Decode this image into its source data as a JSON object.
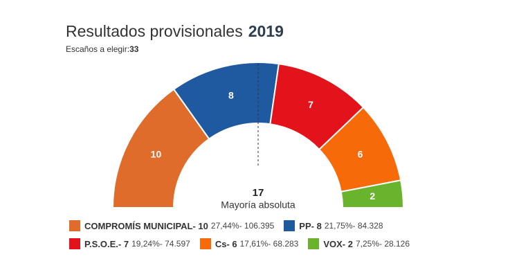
{
  "chart_data": {
    "type": "semicircle",
    "title": "Resultados provisionales",
    "year": 2019,
    "seats_label": "Escaños a elegir:",
    "seats_total": 33,
    "majority": 17,
    "majority_label": "Mayoría absoluta",
    "categories": [
      "COMPROMÍS MUNICIPAL",
      "PP",
      "P.S.O.E.",
      "Cs",
      "VOX"
    ],
    "values": [
      10,
      8,
      7,
      6,
      2
    ],
    "colors": [
      "#e06c2c",
      "#1f5aa0",
      "#e3131b",
      "#f66a0a",
      "#6ab42d"
    ],
    "legend": [
      {
        "label": "COMPROMÍS MUNICIPAL- 10",
        "detail": "27,44%- 106.395"
      },
      {
        "label": "PP- 8",
        "detail": "21,75%- 84.328"
      },
      {
        "label": "P.S.O.E.- 7",
        "detail": "19,24%- 74.597"
      },
      {
        "label": "Cs- 6",
        "detail": "17,61%- 68.283"
      },
      {
        "label": "VOX- 2",
        "detail": "7,25%- 28.126"
      }
    ]
  }
}
